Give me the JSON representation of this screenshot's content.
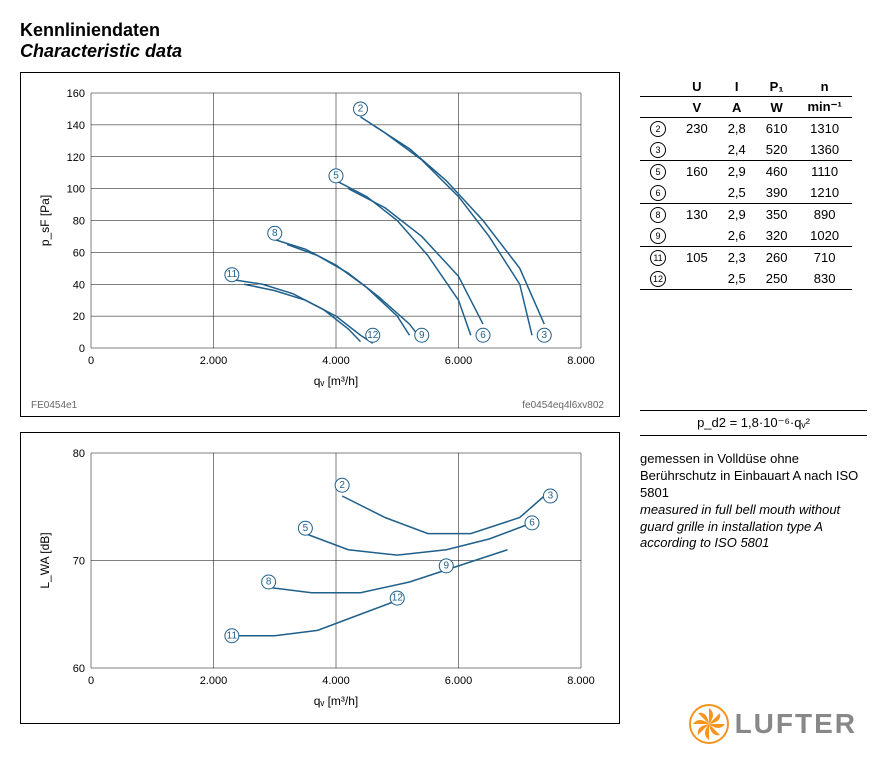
{
  "title_de": "Kennliniendaten",
  "title_en": "Characteristic data",
  "footer_left": "FE0454e1",
  "footer_right": "fe0454eq4l6xv802",
  "colors": {
    "curve": "#1f5f8b",
    "bg": "#ffffff",
    "text": "#000000",
    "grid": "#000000",
    "logo_orange": "#f7941e",
    "logo_gray": "#888888"
  },
  "chart1": {
    "type": "line",
    "xlabel": "qᵥ [m³/h]",
    "ylabel": "p_sF [Pa]",
    "xlim": [
      0,
      8000
    ],
    "ylim": [
      0,
      160
    ],
    "xtick_step": 2000,
    "ytick_step": 20,
    "xtick_labels": [
      "0",
      "2.000",
      "4.000",
      "6.000",
      "8.000"
    ],
    "ytick_labels": [
      "0",
      "20",
      "40",
      "60",
      "80",
      "100",
      "120",
      "140",
      "160"
    ],
    "line_color": "#1f5f8b",
    "line_width": 1.5,
    "grid_color": "#000000",
    "series": [
      {
        "label": "2",
        "marker_at": [
          4400,
          150
        ],
        "points": [
          [
            4400,
            145
          ],
          [
            4800,
            135
          ],
          [
            5400,
            118
          ],
          [
            6000,
            95
          ],
          [
            6500,
            70
          ],
          [
            7000,
            40
          ],
          [
            7200,
            8
          ]
        ]
      },
      {
        "label": "5",
        "marker_at": [
          4000,
          108
        ],
        "points": [
          [
            4000,
            105
          ],
          [
            4500,
            95
          ],
          [
            5000,
            80
          ],
          [
            5500,
            58
          ],
          [
            6000,
            30
          ],
          [
            6200,
            8
          ]
        ]
      },
      {
        "label": "8",
        "marker_at": [
          3000,
          72
        ],
        "points": [
          [
            3000,
            68
          ],
          [
            3500,
            62
          ],
          [
            4000,
            52
          ],
          [
            4500,
            38
          ],
          [
            5000,
            20
          ],
          [
            5200,
            8
          ]
        ]
      },
      {
        "label": "11",
        "marker_at": [
          2300,
          46
        ],
        "points": [
          [
            2300,
            43
          ],
          [
            2800,
            40
          ],
          [
            3300,
            34
          ],
          [
            3800,
            24
          ],
          [
            4200,
            12
          ],
          [
            4400,
            4
          ]
        ]
      },
      {
        "label": "12",
        "marker_at": [
          4600,
          8
        ],
        "points": []
      },
      {
        "label": "9",
        "marker_at": [
          5400,
          8
        ],
        "points": []
      },
      {
        "label": "6",
        "marker_at": [
          6400,
          8
        ],
        "points": []
      },
      {
        "label": "3",
        "marker_at": [
          7400,
          8
        ],
        "points": []
      }
    ],
    "extra_curves": [
      {
        "label": "3",
        "points": [
          [
            4600,
            140
          ],
          [
            5200,
            125
          ],
          [
            5800,
            105
          ],
          [
            6400,
            80
          ],
          [
            7000,
            50
          ],
          [
            7400,
            15
          ]
        ]
      },
      {
        "label": "6",
        "points": [
          [
            4200,
            100
          ],
          [
            4800,
            88
          ],
          [
            5400,
            70
          ],
          [
            6000,
            45
          ],
          [
            6400,
            15
          ]
        ]
      },
      {
        "label": "9",
        "points": [
          [
            3200,
            65
          ],
          [
            3700,
            58
          ],
          [
            4200,
            47
          ],
          [
            4700,
            32
          ],
          [
            5200,
            15
          ],
          [
            5400,
            5
          ]
        ]
      },
      {
        "label": "12",
        "points": [
          [
            2500,
            40
          ],
          [
            3000,
            36
          ],
          [
            3500,
            30
          ],
          [
            4000,
            20
          ],
          [
            4400,
            8
          ],
          [
            4600,
            3
          ]
        ]
      }
    ]
  },
  "chart2": {
    "type": "line",
    "xlabel": "qᵥ [m³/h]",
    "ylabel": "L_WA [dB]",
    "xlim": [
      0,
      8000
    ],
    "ylim": [
      60,
      80
    ],
    "xtick_step": 2000,
    "ytick_step": 10,
    "xtick_labels": [
      "0",
      "2.000",
      "4.000",
      "6.000",
      "8.000"
    ],
    "ytick_labels": [
      "60",
      "70",
      "80"
    ],
    "line_color": "#1f5f8b",
    "line_width": 1.5,
    "series": [
      {
        "label": "2",
        "marker_at": [
          4100,
          77
        ],
        "points": [
          [
            4100,
            76
          ],
          [
            4800,
            74
          ],
          [
            5500,
            72.5
          ],
          [
            6200,
            72.5
          ],
          [
            7000,
            74
          ],
          [
            7400,
            76
          ]
        ]
      },
      {
        "label": "3",
        "marker_at": [
          7500,
          76
        ],
        "points": []
      },
      {
        "label": "5",
        "marker_at": [
          3500,
          73
        ],
        "points": [
          [
            3500,
            72.5
          ],
          [
            4200,
            71
          ],
          [
            5000,
            70.5
          ],
          [
            5800,
            71
          ],
          [
            6500,
            72
          ],
          [
            7200,
            73.5
          ]
        ]
      },
      {
        "label": "6",
        "marker_at": [
          7200,
          73.5
        ],
        "points": []
      },
      {
        "label": "8",
        "marker_at": [
          2900,
          68
        ],
        "points": [
          [
            2900,
            67.5
          ],
          [
            3600,
            67
          ],
          [
            4400,
            67
          ],
          [
            5200,
            68
          ],
          [
            6000,
            69.5
          ],
          [
            6800,
            71
          ]
        ]
      },
      {
        "label": "9",
        "marker_at": [
          5800,
          69.5
        ],
        "points": []
      },
      {
        "label": "11",
        "marker_at": [
          2300,
          63
        ],
        "points": [
          [
            2300,
            63
          ],
          [
            3000,
            63
          ],
          [
            3700,
            63.5
          ],
          [
            4400,
            65
          ],
          [
            5100,
            66.5
          ]
        ]
      },
      {
        "label": "12",
        "marker_at": [
          5000,
          66.5
        ],
        "points": []
      }
    ]
  },
  "table": {
    "headers1": [
      "",
      "U",
      "I",
      "P₁",
      "n"
    ],
    "headers2": [
      "",
      "V",
      "A",
      "W",
      "min⁻¹"
    ],
    "rows": [
      {
        "m": "2",
        "U": "230",
        "I": "2,8",
        "P": "610",
        "n": "1310",
        "sep": false
      },
      {
        "m": "3",
        "U": "",
        "I": "2,4",
        "P": "520",
        "n": "1360",
        "sep": true
      },
      {
        "m": "5",
        "U": "160",
        "I": "2,9",
        "P": "460",
        "n": "1110",
        "sep": false
      },
      {
        "m": "6",
        "U": "",
        "I": "2,5",
        "P": "390",
        "n": "1210",
        "sep": true
      },
      {
        "m": "8",
        "U": "130",
        "I": "2,9",
        "P": "350",
        "n": "890",
        "sep": false
      },
      {
        "m": "9",
        "U": "",
        "I": "2,6",
        "P": "320",
        "n": "1020",
        "sep": true
      },
      {
        "m": "11",
        "U": "105",
        "I": "2,3",
        "P": "260",
        "n": "710",
        "sep": false
      },
      {
        "m": "12",
        "U": "",
        "I": "2,5",
        "P": "250",
        "n": "830",
        "sep": true
      }
    ]
  },
  "formula": "p_d2 = 1,8·10⁻⁶·qᵥ²",
  "note_de": "gemessen in Volldüse ohne Berührschutz in Einbauart A nach ISO 5801",
  "note_en": "measured in full bell mouth without guard grille in installation type A according to ISO 5801",
  "logo_text": "LUFTER"
}
